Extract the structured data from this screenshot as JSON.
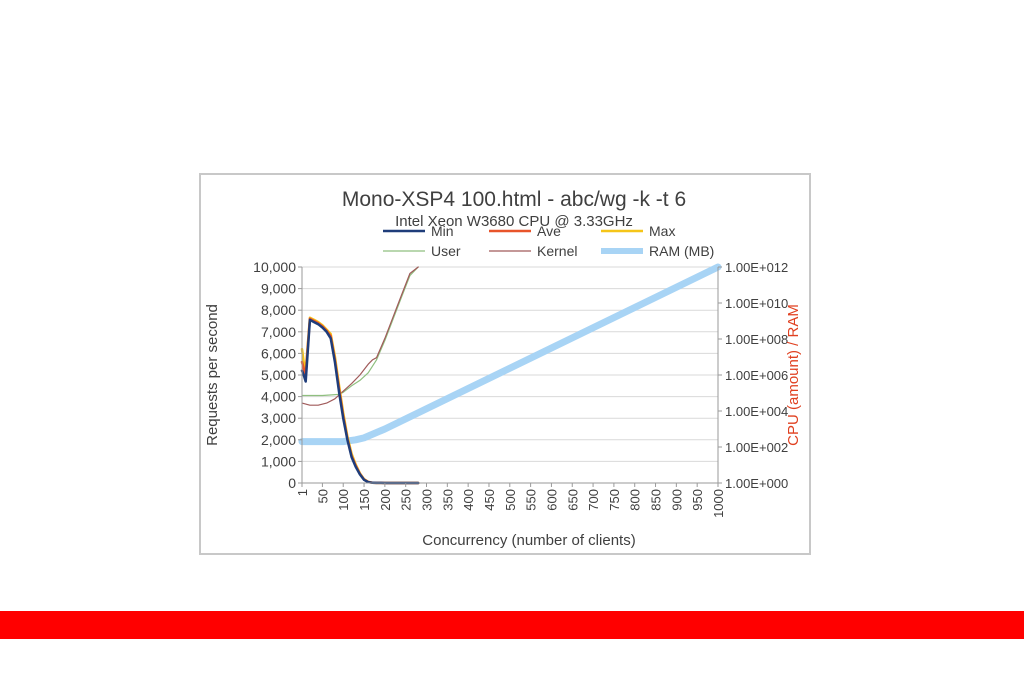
{
  "chart_data": {
    "type": "line",
    "title": "Mono-XSP4 100.html - abc/wg -k -t 6",
    "subtitle": "Intel Xeon W3680 CPU @ 3.33GHz",
    "xlabel": "Concurrency (number of clients)",
    "ylabel": "Requests per second",
    "y2label": "CPU (amount) / RAM",
    "xlim": [
      1,
      1000
    ],
    "ylim": [
      0,
      10000
    ],
    "y2scale": "log",
    "y2lim": [
      1,
      1000000000000
    ],
    "x_ticks": [
      "1",
      "50",
      "100",
      "150",
      "200",
      "250",
      "300",
      "350",
      "400",
      "450",
      "500",
      "550",
      "600",
      "650",
      "700",
      "750",
      "800",
      "850",
      "900",
      "950",
      "1000"
    ],
    "y_ticks": [
      "10,000",
      "9,000",
      "8,000",
      "7,000",
      "6,000",
      "5,000",
      "4,000",
      "3,000",
      "2,000",
      "1,000",
      "0"
    ],
    "y2_ticks": [
      "1.00E+012",
      "1.00E+010",
      "1.00E+008",
      "1.00E+006",
      "1.00E+004",
      "1.00E+002",
      "1.00E+000"
    ],
    "grid": "horizontal",
    "legend_position": "top",
    "series": [
      {
        "name": "Min",
        "axis": "left",
        "color": "#1f3d7a",
        "width": 2.5,
        "x": [
          1,
          5,
          10,
          20,
          30,
          40,
          50,
          60,
          70,
          80,
          90,
          100,
          110,
          120,
          130,
          140,
          150,
          160,
          170,
          180,
          190,
          200,
          220,
          240,
          260,
          280
        ],
        "y": [
          5200,
          5000,
          4700,
          7550,
          7450,
          7350,
          7200,
          7000,
          6700,
          5600,
          4200,
          3000,
          2000,
          1200,
          750,
          400,
          150,
          40,
          10,
          5,
          3,
          0,
          0,
          0,
          0,
          0
        ]
      },
      {
        "name": "Ave",
        "axis": "left",
        "color": "#e8542a",
        "width": 2.5,
        "x": [
          1,
          5,
          10,
          20,
          30,
          40,
          50,
          60,
          70,
          80,
          90,
          100,
          110,
          120,
          130,
          140,
          150,
          160,
          170,
          180,
          190,
          200,
          220,
          240,
          260,
          280
        ],
        "y": [
          5600,
          5300,
          5000,
          7600,
          7500,
          7400,
          7250,
          7050,
          6800,
          5700,
          4350,
          3100,
          2050,
          1250,
          800,
          420,
          160,
          45,
          12,
          5,
          3,
          0,
          0,
          0,
          0,
          0
        ]
      },
      {
        "name": "Max",
        "axis": "left",
        "color": "#f5c518",
        "width": 2.5,
        "x": [
          1,
          5,
          10,
          20,
          30,
          40,
          50,
          60,
          70,
          80,
          90,
          100,
          110,
          120,
          130,
          140,
          150,
          160,
          170,
          180,
          190,
          200,
          220,
          240,
          260,
          280
        ],
        "y": [
          6200,
          5600,
          5200,
          7650,
          7550,
          7450,
          7300,
          7100,
          6900,
          5850,
          4500,
          3250,
          2150,
          1350,
          850,
          450,
          180,
          50,
          15,
          6,
          3,
          0,
          0,
          0,
          0,
          0
        ]
      },
      {
        "name": "User",
        "axis": "left",
        "color": "#8fbf7f",
        "width": 1.2,
        "x": [
          1,
          50,
          90,
          100,
          120,
          140,
          160,
          180,
          200,
          220,
          240,
          260,
          280
        ],
        "y": [
          4050,
          4050,
          4100,
          4200,
          4500,
          4750,
          5100,
          5700,
          6600,
          7600,
          8600,
          9600,
          10000
        ]
      },
      {
        "name": "Kernel",
        "axis": "left",
        "color": "#a05a5a",
        "width": 1.2,
        "x": [
          1,
          20,
          40,
          60,
          80,
          100,
          120,
          140,
          160,
          170,
          180,
          200,
          220,
          240,
          260,
          280
        ],
        "y": [
          3700,
          3600,
          3600,
          3700,
          3900,
          4250,
          4600,
          5000,
          5500,
          5700,
          5800,
          6700,
          7700,
          8700,
          9700,
          10000
        ]
      },
      {
        "name": "RAM (MB)",
        "axis": "right",
        "color": "#a8d4f5",
        "width": 7,
        "x": [
          1,
          50,
          100,
          130,
          150,
          200,
          1000
        ],
        "y": [
          200,
          200,
          200,
          250,
          320,
          1000,
          1000000000000
        ]
      }
    ]
  },
  "colors": {
    "bottom_bar": "#ff0000",
    "right_axis_label": "#e04020",
    "frame_border": "#c8c8c8",
    "grid": "#d9d9d9"
  }
}
